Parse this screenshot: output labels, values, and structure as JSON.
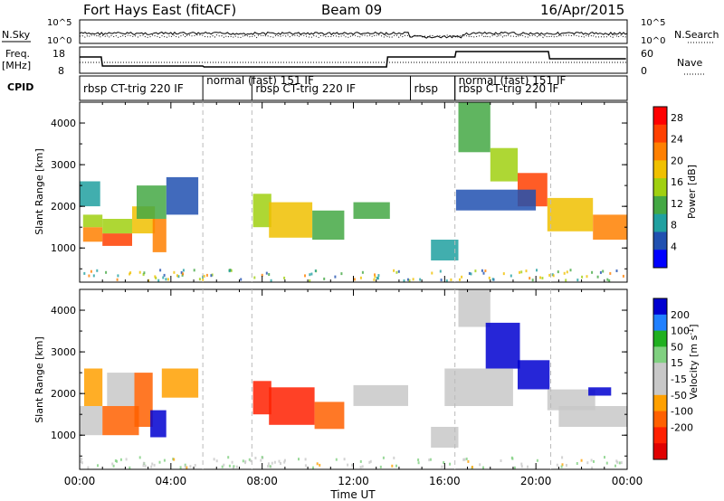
{
  "header": {
    "station": "Fort Hays East (fitACF)",
    "beam": "Beam 09",
    "date": "16/Apr/2015"
  },
  "noise_panel": {
    "left_label": "N.Sky",
    "left_ticks": [
      "10^5",
      "10^0"
    ],
    "right_label": "N.Search",
    "right_ticks": [
      "10^5",
      "10^0"
    ]
  },
  "freq_panel": {
    "left_label_top": "Freq.",
    "left_label_bottom": "[MHz]",
    "left_ticks": [
      "18",
      "8"
    ],
    "right_label": "Nave",
    "right_ticks": [
      "60",
      "0"
    ]
  },
  "cpid_panel": {
    "label": "CPID",
    "segments": [
      {
        "label": "rbsp CT-trig 220 IF",
        "start_hour": 0.0
      },
      {
        "label": "normal (fast) 151 IF",
        "start_hour": 5.4
      },
      {
        "label": "rbsp CT-trig 220 IF",
        "start_hour": 7.55
      },
      {
        "label": "rbsp",
        "start_hour": 14.5
      },
      {
        "label": "normal (fast) 151 IF",
        "start_hour": 16.45
      },
      {
        "label": "rbsp CT-trig 220 IF",
        "start_hour": 16.45
      }
    ]
  },
  "colors": {
    "power_scale": [
      "#0000ff",
      "#2050b0",
      "#20a0a0",
      "#44a844",
      "#a0d010",
      "#f0c000",
      "#ff8000",
      "#ff4000",
      "#ff0000"
    ],
    "velocity_scale": [
      "#0000d0",
      "#2080ff",
      "#20b020",
      "#80d080",
      "#c8c8c8",
      "#c8c8c8",
      "#ffa000",
      "#ff6000",
      "#ff2000",
      "#e00000"
    ]
  },
  "chart_data": [
    {
      "type": "heatmap",
      "title": "Power",
      "xlabel": "Time UT",
      "ylabel": "Slant Range [km]",
      "x_ticks": [
        "00:00",
        "04:00",
        "08:00",
        "12:00",
        "16:00",
        "20:00",
        "00:00"
      ],
      "xlim_hours": [
        0,
        24
      ],
      "ylim": [
        180,
        4500
      ],
      "y_ticks": [
        1000,
        2000,
        3000,
        4000
      ],
      "colorbar": {
        "label": "Power [dB]",
        "ticks": [
          4,
          8,
          12,
          16,
          20,
          24,
          28
        ],
        "range": [
          0,
          30
        ]
      },
      "cells": [
        {
          "t0": 0.15,
          "t1": 1.0,
          "r0": 1150,
          "r1": 1500,
          "value": 22
        },
        {
          "t0": 0.15,
          "t1": 1.0,
          "r0": 1500,
          "r1": 1800,
          "value": 14
        },
        {
          "t0": 0.0,
          "t1": 0.9,
          "r0": 2000,
          "r1": 2600,
          "value": 8
        },
        {
          "t0": 1.0,
          "t1": 2.3,
          "r0": 1050,
          "r1": 1350,
          "value": 24
        },
        {
          "t0": 1.0,
          "t1": 2.3,
          "r0": 1350,
          "r1": 1700,
          "value": 14
        },
        {
          "t0": 2.3,
          "t1": 3.3,
          "r0": 1350,
          "r1": 2000,
          "value": 18
        },
        {
          "t0": 2.5,
          "t1": 3.8,
          "r0": 1700,
          "r1": 2500,
          "value": 10
        },
        {
          "t0": 3.2,
          "t1": 3.8,
          "r0": 900,
          "r1": 1700,
          "value": 20
        },
        {
          "t0": 3.8,
          "t1": 5.2,
          "r0": 1800,
          "r1": 2700,
          "value": 6
        },
        {
          "t0": 7.6,
          "t1": 8.4,
          "r0": 1500,
          "r1": 2300,
          "value": 14
        },
        {
          "t0": 8.3,
          "t1": 10.2,
          "r0": 1250,
          "r1": 2100,
          "value": 18
        },
        {
          "t0": 10.2,
          "t1": 11.6,
          "r0": 1200,
          "r1": 1900,
          "value": 10
        },
        {
          "t0": 12.0,
          "t1": 13.6,
          "r0": 1700,
          "r1": 2100,
          "value": 10
        },
        {
          "t0": 15.4,
          "t1": 16.6,
          "r0": 700,
          "r1": 1200,
          "value": 8
        },
        {
          "t0": 16.6,
          "t1": 18.0,
          "r0": 3300,
          "r1": 4500,
          "value": 10
        },
        {
          "t0": 18.0,
          "t1": 19.2,
          "r0": 2600,
          "r1": 3400,
          "value": 14
        },
        {
          "t0": 19.2,
          "t1": 20.5,
          "r0": 2000,
          "r1": 2800,
          "value": 26
        },
        {
          "t0": 20.5,
          "t1": 22.5,
          "r0": 1400,
          "r1": 2200,
          "value": 18
        },
        {
          "t0": 22.5,
          "t1": 24.0,
          "r0": 1200,
          "r1": 1800,
          "value": 20
        },
        {
          "t0": 16.5,
          "t1": 20.0,
          "r0": 1900,
          "r1": 2400,
          "value": 6
        }
      ]
    },
    {
      "type": "heatmap",
      "title": "Velocity",
      "xlabel": "Time UT",
      "ylabel": "Slant Range [km]",
      "x_ticks": [
        "00:00",
        "04:00",
        "08:00",
        "12:00",
        "16:00",
        "20:00",
        "00:00"
      ],
      "xlim_hours": [
        0,
        24
      ],
      "ylim": [
        180,
        4500
      ],
      "y_ticks": [
        1000,
        2000,
        3000,
        4000
      ],
      "colorbar": {
        "label": "Velocity [m s^-1]",
        "ticks": [
          200,
          100,
          50,
          15,
          -15,
          -50,
          -100,
          -200
        ],
        "range": [
          -250,
          250
        ]
      },
      "cells": [
        {
          "t0": 0.0,
          "t1": 1.0,
          "r0": 1000,
          "r1": 1700,
          "value": 0
        },
        {
          "t0": 0.2,
          "t1": 1.0,
          "r0": 1700,
          "r1": 2600,
          "value": -40
        },
        {
          "t0": 1.0,
          "t1": 2.6,
          "r0": 1000,
          "r1": 1700,
          "value": -60
        },
        {
          "t0": 1.2,
          "t1": 2.4,
          "r0": 1700,
          "r1": 2500,
          "value": 0
        },
        {
          "t0": 2.4,
          "t1": 3.2,
          "r0": 1200,
          "r1": 2500,
          "value": -70
        },
        {
          "t0": 3.1,
          "t1": 3.8,
          "r0": 950,
          "r1": 1600,
          "value": 220
        },
        {
          "t0": 3.6,
          "t1": 5.2,
          "r0": 1900,
          "r1": 2600,
          "value": -40
        },
        {
          "t0": 7.6,
          "t1": 8.4,
          "r0": 1500,
          "r1": 2300,
          "value": -130
        },
        {
          "t0": 8.3,
          "t1": 10.3,
          "r0": 1250,
          "r1": 2150,
          "value": -150
        },
        {
          "t0": 10.3,
          "t1": 11.6,
          "r0": 1150,
          "r1": 1800,
          "value": -80
        },
        {
          "t0": 12.0,
          "t1": 14.4,
          "r0": 1700,
          "r1": 2200,
          "value": 0
        },
        {
          "t0": 15.4,
          "t1": 16.6,
          "r0": 700,
          "r1": 1200,
          "value": 0
        },
        {
          "t0": 16.6,
          "t1": 18.0,
          "r0": 3600,
          "r1": 4500,
          "value": 0
        },
        {
          "t0": 17.8,
          "t1": 19.3,
          "r0": 2600,
          "r1": 3700,
          "value": 220
        },
        {
          "t0": 19.2,
          "t1": 20.6,
          "r0": 2100,
          "r1": 2800,
          "value": 230
        },
        {
          "t0": 20.5,
          "t1": 22.6,
          "r0": 1600,
          "r1": 2100,
          "value": 0
        },
        {
          "t0": 21.0,
          "t1": 24.0,
          "r0": 1200,
          "r1": 1700,
          "value": 0
        },
        {
          "t0": 22.3,
          "t1": 23.3,
          "r0": 1950,
          "r1": 2150,
          "value": 200
        },
        {
          "t0": 16.0,
          "t1": 19.0,
          "r0": 1700,
          "r1": 2600,
          "value": 0
        }
      ]
    }
  ]
}
